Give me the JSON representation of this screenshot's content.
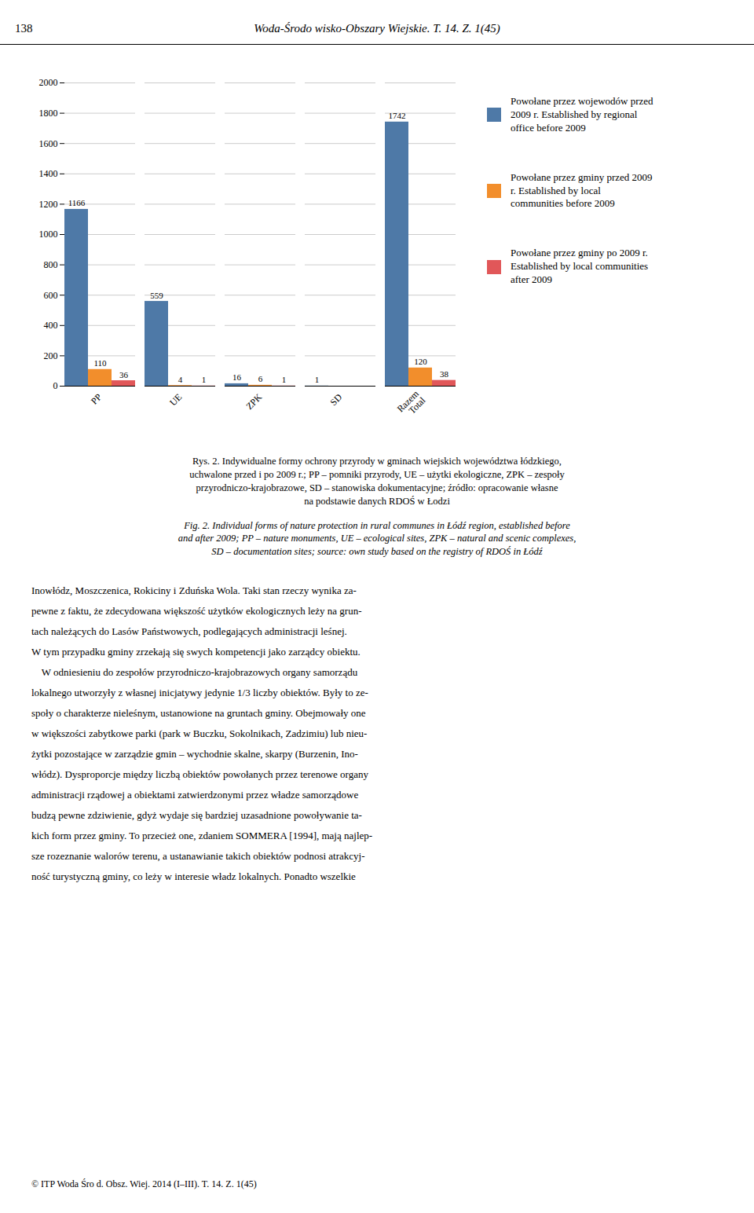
{
  "chart_data": {
    "type": "bar",
    "title": "Rys. 2. Indywidualne formy ochrony przyrody w gminach wiejskich województwa łódzkiego,\nuchwalone przed i po 2009 r.; PP – pomniki przyrody, UE – użytki ekologiczne, ZPK – zespoły\nprzyrodniczo-krajobrazowe, SD – stanowiska dokumentacyjne; źródło: opracowanie własne\nna podstawie danych RDOŚ w Łodzi",
    "subtitle": "Fig. 2. Individual forms of nature protection in rural communes in Łódź region, established before\nand after 2009; PP – nature monuments, UE – ecological sites, ZPK – natural and scenic complexes,\nSD – documentation sites; source: own study based on the registry of RDOŚ in Łódź",
    "header_left": "138",
    "header_center": "Woda-Środo wisko-Obszary Wiejskie. T. 14. Z. 1(45)",
    "body": [
      "Inowłódz, Moszczenica, Rokiciny i Zduńska Wola. Taki stan rzeczy wynika za-",
      "pewne z faktu, że zdecydowana większość użytków ekologicznych leży na grun-",
      "tach należących do Lasów Państwowych, podlegających administracji leśnej.",
      "W tym przypadku gminy zrzekają się swych kompetencji jako zarządcy obiektu.",
      "    W odniesieniu do zespołów przyrodniczo-krajobrazowych organy samorządu",
      "lokalnego utworzyły z własnej inicjatywy jedynie 1/3 liczby obiektów. Były to ze-",
      "społy o charakterze nieleśnym, ustanowione na gruntach gminy. Obejmowały one",
      "w większości zabytkowe parki (park w Buczku, Sokolnikach, Zadzimiu) lub nieu-",
      "żytki pozostające w zarządzie gmin – wychodnie skalne, skarpy (Burzenin, Ino-",
      "włódz). Dysproporcje między liczbą obiektów powołanych przez terenowe organy",
      "administracji rządowej a obiektami zatwierdzonymi przez władze samorządowe",
      "budzą pewne zdziwienie, gdyż wydaje się bardziej uzasadnione powoływanie ta-",
      "kich form przez gminy. To przecież one, zdaniem SOMMERA [1994], mają najlep-",
      "sze rozeznanie walorów terenu, a ustanawianie takich obiektów podnosi atrakcyj-",
      "ność turystyczną gminy, co leży w interesie władz lokalnych. Ponadto wszelkie"
    ],
    "footer": "© ITP Woda Śro d. Obsz. Wiej. 2014 (I–III). T. 14. Z. 1(45)",
    "categories": [
      "PP",
      "UE",
      "ZPK",
      "SD",
      "Razem\nTotal"
    ],
    "series": [
      {
        "name": "Powołane przez wojewodów przed\n2009 r. Established by regional\noffice before 2009",
        "values": [
          1166,
          559,
          16,
          1,
          1742
        ]
      },
      {
        "name": "Powołane przez gminy przed 2009\nr. Established by local\ncommunities before 2009",
        "values": [
          110,
          4,
          6,
          0,
          120
        ],
        "value_labels": [
          "110",
          "4",
          "6",
          null,
          "120"
        ]
      },
      {
        "name": "Powołane przez gminy po 2009 r.\nEstablished by local communities\nafter 2009",
        "values": [
          36,
          1,
          1,
          0,
          38
        ],
        "value_labels": [
          "36",
          "1",
          "1",
          null,
          "38"
        ]
      }
    ],
    "ylim": [
      0,
      2000
    ],
    "yticks": [
      0,
      200,
      400,
      600,
      800,
      1000,
      1200,
      1400,
      1600,
      1800,
      2000
    ],
    "grid": true,
    "legend": "right",
    "data_labels": true
  }
}
